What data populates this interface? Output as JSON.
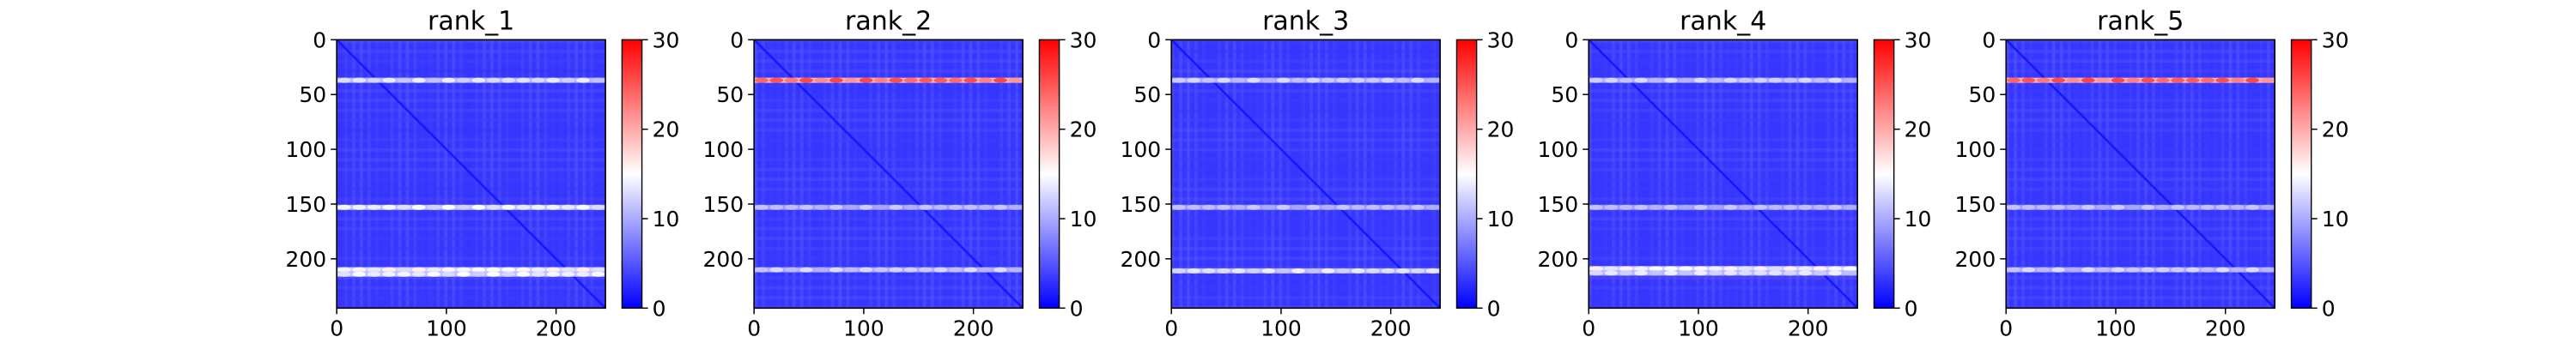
{
  "chart_data": [
    {
      "type": "heatmap",
      "title": "rank_1",
      "xticks": [
        "0",
        "100",
        "200"
      ],
      "yticks": [
        "0",
        "50",
        "100",
        "150",
        "200"
      ],
      "xlim": [
        0,
        245
      ],
      "ylim": [
        245,
        0
      ],
      "colorbar": {
        "ticks": [
          "0",
          "10",
          "20",
          "30"
        ],
        "range": [
          0,
          30
        ],
        "colors": [
          "#0000ff",
          "#ffffff",
          "#ff0000"
        ]
      },
      "bright_rows": [
        {
          "y": 37,
          "value": 14
        },
        {
          "y": 153,
          "value": 15
        },
        {
          "y": 210,
          "value": 16
        },
        {
          "y": 214,
          "value": 15
        }
      ]
    },
    {
      "type": "heatmap",
      "title": "rank_2",
      "xticks": [
        "0",
        "100",
        "200"
      ],
      "yticks": [
        "0",
        "50",
        "100",
        "150",
        "200"
      ],
      "xlim": [
        0,
        245
      ],
      "ylim": [
        245,
        0
      ],
      "colorbar": {
        "ticks": [
          "0",
          "10",
          "20",
          "30"
        ],
        "range": [
          0,
          30
        ],
        "colors": [
          "#0000ff",
          "#ffffff",
          "#ff0000"
        ]
      },
      "bright_rows": [
        {
          "y": 37,
          "value": 26
        },
        {
          "y": 153,
          "value": 12
        },
        {
          "y": 210,
          "value": 13
        }
      ]
    },
    {
      "type": "heatmap",
      "title": "rank_3",
      "xticks": [
        "0",
        "100",
        "200"
      ],
      "yticks": [
        "0",
        "50",
        "100",
        "150",
        "200"
      ],
      "xlim": [
        0,
        245
      ],
      "ylim": [
        245,
        0
      ],
      "colorbar": {
        "ticks": [
          "0",
          "10",
          "20",
          "30"
        ],
        "range": [
          0,
          30
        ],
        "colors": [
          "#0000ff",
          "#ffffff",
          "#ff0000"
        ]
      },
      "bright_rows": [
        {
          "y": 37,
          "value": 13
        },
        {
          "y": 153,
          "value": 12
        },
        {
          "y": 211,
          "value": 14
        }
      ]
    },
    {
      "type": "heatmap",
      "title": "rank_4",
      "xticks": [
        "0",
        "100",
        "200"
      ],
      "yticks": [
        "0",
        "50",
        "100",
        "150",
        "200"
      ],
      "xlim": [
        0,
        245
      ],
      "ylim": [
        245,
        0
      ],
      "colorbar": {
        "ticks": [
          "0",
          "10",
          "20",
          "30"
        ],
        "range": [
          0,
          30
        ],
        "colors": [
          "#0000ff",
          "#ffffff",
          "#ff0000"
        ]
      },
      "bright_rows": [
        {
          "y": 37,
          "value": 13
        },
        {
          "y": 153,
          "value": 12
        },
        {
          "y": 209,
          "value": 16
        },
        {
          "y": 213,
          "value": 14
        }
      ]
    },
    {
      "type": "heatmap",
      "title": "rank_5",
      "xticks": [
        "0",
        "100",
        "200"
      ],
      "yticks": [
        "0",
        "50",
        "100",
        "150",
        "200"
      ],
      "xlim": [
        0,
        245
      ],
      "ylim": [
        245,
        0
      ],
      "colorbar": {
        "ticks": [
          "0",
          "10",
          "20",
          "30"
        ],
        "range": [
          0,
          30
        ],
        "colors": [
          "#0000ff",
          "#ffffff",
          "#ff0000"
        ]
      },
      "bright_rows": [
        {
          "y": 37,
          "value": 26
        },
        {
          "y": 153,
          "value": 12
        },
        {
          "y": 210,
          "value": 13
        }
      ]
    }
  ]
}
